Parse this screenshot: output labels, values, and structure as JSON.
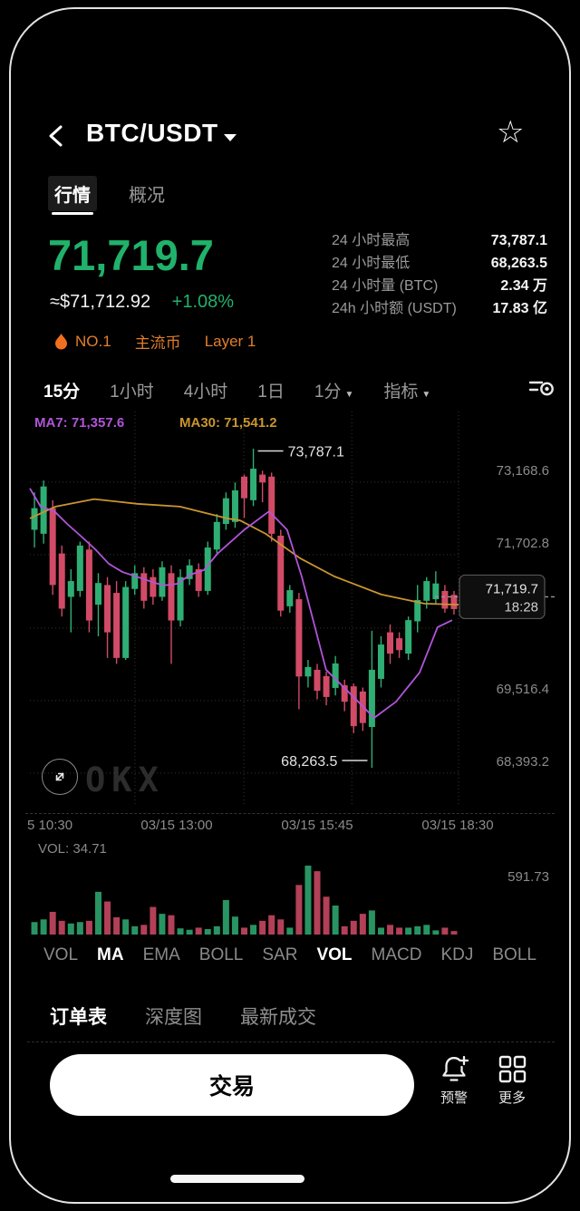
{
  "header": {
    "title": "BTC/USDT"
  },
  "page_tabs": [
    {
      "label": "行情",
      "active": true
    },
    {
      "label": "概况",
      "active": false
    }
  ],
  "price": {
    "last": "71,719.7",
    "fiat": "≈$71,712.92",
    "change": "+1.08%"
  },
  "badges": [
    "NO.1",
    "主流币",
    "Layer 1"
  ],
  "stats": [
    {
      "label": "24 小时最高",
      "value": "73,787.1"
    },
    {
      "label": "24 小时最低",
      "value": "68,263.5"
    },
    {
      "label": "24 小时量 (BTC)",
      "value": "2.34 万"
    },
    {
      "label": "24h 小时额 (USDT)",
      "value": "17.83 亿"
    }
  ],
  "timeframes": [
    {
      "label": "15分",
      "active": true,
      "caret": false
    },
    {
      "label": "1小时",
      "active": false,
      "caret": false
    },
    {
      "label": "4小时",
      "active": false,
      "caret": false
    },
    {
      "label": "1日",
      "active": false,
      "caret": false
    },
    {
      "label": "1分",
      "active": false,
      "caret": true
    },
    {
      "label": "指标",
      "active": false,
      "caret": true
    }
  ],
  "colors": {
    "up": "#2fae73",
    "down": "#d14b66",
    "price_green": "#20b26b",
    "badge_orange": "#e07f2b",
    "ma7": "#b055d8",
    "ma30": "#c9952f",
    "axis_text": "#8b8b8b"
  },
  "chart_data": {
    "type": "candlestick+volume",
    "pair": "BTC/USDT",
    "interval": "15分",
    "ma7": {
      "label": "MA7: 71,357.6",
      "value": 71357.6,
      "color": "#b055d8",
      "points": [
        [
          0.0,
          73043
        ],
        [
          0.025,
          72742
        ],
        [
          0.057,
          72664
        ],
        [
          0.089,
          72442
        ],
        [
          0.12,
          72247
        ],
        [
          0.152,
          72038
        ],
        [
          0.184,
          71796
        ],
        [
          0.216,
          71659
        ],
        [
          0.247,
          71587
        ],
        [
          0.279,
          71509
        ],
        [
          0.311,
          71437
        ],
        [
          0.343,
          71463
        ],
        [
          0.374,
          71613
        ],
        [
          0.406,
          71692
        ],
        [
          0.438,
          71966
        ],
        [
          0.5,
          72358
        ],
        [
          0.558,
          72664
        ],
        [
          0.6,
          72358
        ],
        [
          0.634,
          71587
        ],
        [
          0.691,
          70041
        ],
        [
          0.755,
          69591
        ],
        [
          0.803,
          69245
        ],
        [
          0.854,
          69512
        ],
        [
          0.909,
          69995
        ],
        [
          0.951,
          70746
        ],
        [
          0.985,
          70863
        ]
      ]
    },
    "ma30": {
      "label": "MA30: 71,541.2",
      "value": 71541.2,
      "color": "#c9952f",
      "points": [
        [
          0.0,
          72546
        ],
        [
          0.06,
          72742
        ],
        [
          0.15,
          72866
        ],
        [
          0.25,
          72788
        ],
        [
          0.35,
          72742
        ],
        [
          0.46,
          72546
        ],
        [
          0.49,
          72514
        ],
        [
          0.55,
          72292
        ],
        [
          0.63,
          71888
        ],
        [
          0.71,
          71587
        ],
        [
          0.82,
          71287
        ],
        [
          0.92,
          71137
        ],
        [
          1.0,
          71118
        ]
      ]
    },
    "y_axis": {
      "range": [
        67790,
        74315
      ],
      "labels": [
        {
          "text": "73,168.6",
          "f": 0.149
        },
        {
          "text": "71,702.8",
          "f": 0.333
        },
        {
          "text": "69,516.4",
          "f": 0.703
        },
        {
          "text": "68,393.2",
          "f": 0.887
        }
      ]
    },
    "grid": {
      "v": [
        0.245,
        0.499,
        0.751,
        1.0
      ],
      "h": [
        0.179,
        0.363,
        0.549,
        0.733,
        0.917
      ]
    },
    "x_axis": {
      "labels": [
        "5 10:30",
        "03/15 13:00",
        "03/15 15:45",
        "03/15 18:30"
      ]
    },
    "annotations": {
      "high": {
        "text": "73,787.1",
        "x_frac": 0.5213,
        "y_frac": 0.1
      },
      "low": {
        "text": "68,263.5",
        "x_frac": 0.798,
        "y_frac": 0.885
      }
    },
    "last_price": {
      "text": "71,719.7",
      "time": "18:28",
      "y_frac": 0.47
    },
    "candles": [
      [
        72358,
        72977,
        72064,
        72716
      ],
      [
        72292,
        73173,
        72129,
        73075
      ],
      [
        72716,
        72847,
        71281,
        71444
      ],
      [
        71966,
        72097,
        70922,
        71053
      ],
      [
        71248,
        71705,
        70661,
        71509
      ],
      [
        71346,
        72162,
        71248,
        72097
      ],
      [
        72031,
        72162,
        70661,
        70857
      ],
      [
        71118,
        71640,
        70596,
        71477
      ],
      [
        71444,
        71575,
        70237,
        70661
      ],
      [
        71314,
        71509,
        70139,
        70237
      ],
      [
        70237,
        71509,
        70205,
        71411
      ],
      [
        71379,
        71770,
        71281,
        71640
      ],
      [
        71640,
        71738,
        71053,
        71183
      ],
      [
        71575,
        71705,
        71118,
        71248
      ],
      [
        71248,
        71836,
        71183,
        71738
      ],
      [
        71640,
        71770,
        70139,
        70857
      ],
      [
        70857,
        71705,
        70759,
        71575
      ],
      [
        71542,
        71868,
        71444,
        71770
      ],
      [
        71705,
        71803,
        71248,
        71346
      ],
      [
        71346,
        72162,
        71281,
        72064
      ],
      [
        72031,
        72619,
        71933,
        72488
      ],
      [
        72455,
        72977,
        72358,
        72880
      ],
      [
        72488,
        73141,
        72390,
        73010
      ],
      [
        73238,
        73271,
        72553,
        72880
      ],
      [
        72847,
        73700,
        72749,
        73369
      ],
      [
        73271,
        73336,
        72814,
        73141
      ],
      [
        73238,
        73304,
        72162,
        72292
      ],
      [
        72260,
        72358,
        70922,
        71020
      ],
      [
        71092,
        71444,
        70987,
        71359
      ],
      [
        71209,
        71314,
        69389,
        69930
      ],
      [
        69930,
        70205,
        69748,
        70087
      ],
      [
        70041,
        70139,
        69552,
        69695
      ],
      [
        69937,
        70009,
        69454,
        69591
      ],
      [
        69741,
        70270,
        69617,
        70146
      ],
      [
        69786,
        69878,
        69356,
        69512
      ],
      [
        69767,
        69813,
        68991,
        69108
      ],
      [
        69682,
        69748,
        69030,
        69160
      ],
      [
        69095,
        70687,
        68420,
        70041
      ],
      [
        69891,
        70596,
        69748,
        70459
      ],
      [
        70661,
        70792,
        70139,
        70309
      ],
      [
        70563,
        70661,
        70237,
        70367
      ],
      [
        70309,
        70922,
        70205,
        70863
      ],
      [
        70843,
        71444,
        70661,
        71196
      ],
      [
        71183,
        71575,
        71053,
        71509
      ],
      [
        71209,
        71672,
        71118,
        71470
      ],
      [
        71346,
        71444,
        70987,
        71053
      ],
      [
        71281,
        71346,
        70954,
        71046
      ]
    ],
    "volume": {
      "label": "VOL: 34.71",
      "max_label": "591.73",
      "scale_max": 591.73,
      "values": [
        107,
        130,
        195,
        118,
        95,
        107,
        118,
        367,
        284,
        148,
        130,
        71,
        83,
        237,
        178,
        166,
        53,
        41,
        59,
        47,
        71,
        296,
        154,
        59,
        83,
        118,
        166,
        130,
        59,
        426,
        592,
        544,
        325,
        249,
        71,
        118,
        178,
        207,
        59,
        83,
        59,
        59,
        71,
        83,
        36,
        59,
        30
      ]
    }
  },
  "indicator_tabs": [
    {
      "label": "VOL",
      "active": false
    },
    {
      "label": "MA",
      "active": true
    },
    {
      "label": "EMA",
      "active": false
    },
    {
      "label": "BOLL",
      "active": false
    },
    {
      "label": "SAR",
      "active": false
    },
    {
      "label": "VOL",
      "active": true
    },
    {
      "label": "MACD",
      "active": false
    },
    {
      "label": "KDJ",
      "active": false
    },
    {
      "label": "BOLL",
      "active": false
    }
  ],
  "bottom_tabs": [
    {
      "label": "订单表",
      "active": true
    },
    {
      "label": "深度图",
      "active": false
    },
    {
      "label": "最新成交",
      "active": false
    }
  ],
  "actions": {
    "trade": "交易",
    "alert": "预警",
    "more": "更多"
  },
  "watermark": "OKX"
}
